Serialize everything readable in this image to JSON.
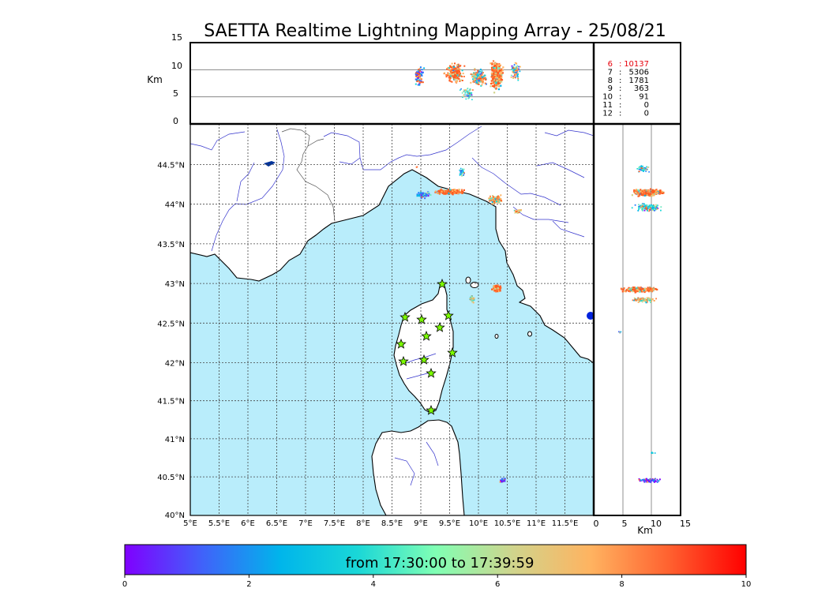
{
  "title": "SAETTA Realtime Lightning Mapping Array - 25/08/21",
  "altitude_panel": {
    "unit_label": "Km",
    "ticks": [
      "15",
      "10",
      "5",
      "0"
    ]
  },
  "station_counts": [
    {
      "stations": "6",
      "count": "10137",
      "color": "#e8000b"
    },
    {
      "stations": "7",
      "count": "5306",
      "color": "#000000"
    },
    {
      "stations": "8",
      "count": "1781",
      "color": "#000000"
    },
    {
      "stations": "9",
      "count": "363",
      "color": "#000000"
    },
    {
      "stations": "10",
      "count": "91",
      "color": "#000000"
    },
    {
      "stations": "11",
      "count": "0",
      "color": "#000000"
    },
    {
      "stations": "12",
      "count": "0",
      "color": "#000000"
    }
  ],
  "map": {
    "lon_ticks": [
      "5°E",
      "5.5°E",
      "6°E",
      "6.5°E",
      "7°E",
      "7.5°E",
      "8°E",
      "8.5°E",
      "9°E",
      "9.5°E",
      "10°E",
      "10.5°E",
      "11°E",
      "11.5°E"
    ],
    "lat_ticks": [
      "44.5°N",
      "44°N",
      "43.5°N",
      "43°N",
      "42.5°N",
      "42°N",
      "41.5°N",
      "41°N",
      "40.5°N",
      "40°N"
    ],
    "sea_color": "#b9edfb",
    "station_color": "#7cfc00"
  },
  "side_panel": {
    "unit_label": "Km",
    "ticks": [
      "0",
      "5",
      "10",
      "15"
    ]
  },
  "colorbar": {
    "label": "from 17:30:00 to 17:39:59",
    "ticks": [
      "0",
      "2",
      "4",
      "6",
      "8",
      "10"
    ],
    "colormap": "rainbow"
  }
}
